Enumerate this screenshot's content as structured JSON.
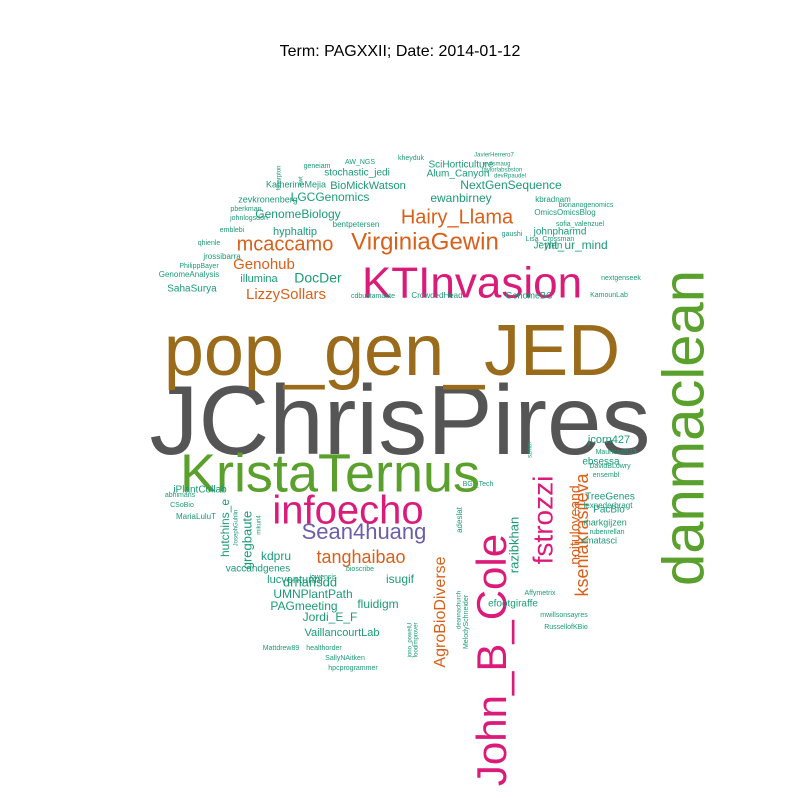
{
  "chart_data": {
    "type": "wordcloud",
    "title": "Term: PAGXXII; Date: 2014-01-12",
    "colors": {
      "gray": "#555555",
      "brown": "#9A6B1A",
      "green": "#5AA02C",
      "pink": "#DB1B7A",
      "orange": "#D9601A",
      "purple": "#6A5FA8",
      "teal": "#1C9A77"
    },
    "words": [
      {
        "text": "JChrisPires",
        "color": "gray"
      },
      {
        "text": "pop_gen_JED",
        "color": "brown"
      },
      {
        "text": "danmaclean",
        "color": "green"
      },
      {
        "text": "KristaTernus",
        "color": "green"
      },
      {
        "text": "KTInvasion",
        "color": "pink"
      },
      {
        "text": "John_B_Cole",
        "color": "pink"
      },
      {
        "text": "infoecho",
        "color": "pink"
      },
      {
        "text": "fstrozzi",
        "color": "pink"
      },
      {
        "text": "VirginiaGewin",
        "color": "orange"
      },
      {
        "text": "Hairy_Llama",
        "color": "orange"
      },
      {
        "text": "mcaccamo",
        "color": "orange"
      },
      {
        "text": "Sean4huang",
        "color": "purple"
      },
      {
        "text": "tanghaibao",
        "color": "orange"
      },
      {
        "text": "AgroBioDiverse",
        "color": "orange"
      },
      {
        "text": "kseniakrasileva",
        "color": "orange"
      },
      {
        "text": "noituloveand",
        "color": "orange"
      },
      {
        "text": "LizzySollars",
        "color": "orange"
      },
      {
        "text": "Genohub",
        "color": "orange"
      },
      {
        "text": "DocDer",
        "color": "teal"
      },
      {
        "text": "razibkhan",
        "color": "teal"
      },
      {
        "text": "drhansdd",
        "color": "teal"
      },
      {
        "text": "gregbaute",
        "color": "teal"
      },
      {
        "text": "hutchins_e",
        "color": "teal"
      },
      {
        "text": "lucventurini",
        "color": "teal"
      },
      {
        "text": "isugif",
        "color": "teal"
      },
      {
        "text": "UMNPlantPath",
        "color": "teal"
      },
      {
        "text": "PAGmeeting",
        "color": "teal"
      },
      {
        "text": "fluidigm",
        "color": "teal"
      },
      {
        "text": "Jordi_E_F",
        "color": "teal"
      },
      {
        "text": "VaillancourtLab",
        "color": "teal"
      },
      {
        "text": "kdpru",
        "color": "teal"
      },
      {
        "text": "illumina",
        "color": "teal"
      },
      {
        "text": "GenomeBiology",
        "color": "teal"
      },
      {
        "text": "LGCGenomics",
        "color": "teal"
      },
      {
        "text": "ewanbirney",
        "color": "teal"
      },
      {
        "text": "NextGenSequence",
        "color": "teal"
      },
      {
        "text": "BioMickWatson",
        "color": "teal"
      },
      {
        "text": "stochastic_jedi",
        "color": "teal"
      },
      {
        "text": "Alum_Canyon",
        "color": "teal"
      },
      {
        "text": "SciHorticulture",
        "color": "teal"
      },
      {
        "text": "hyphaltip",
        "color": "teal"
      },
      {
        "text": "zevkronenberg",
        "color": "teal"
      },
      {
        "text": "KatherineMejia",
        "color": "teal"
      },
      {
        "text": "mt_ur_mind",
        "color": "teal"
      },
      {
        "text": "johnpharmd",
        "color": "teal"
      },
      {
        "text": "Jeylen",
        "color": "teal"
      },
      {
        "text": "jcorn427",
        "color": "teal"
      },
      {
        "text": "ebsessa",
        "color": "teal"
      },
      {
        "text": "TreeGenes",
        "color": "teal"
      },
      {
        "text": "PacBio",
        "color": "teal"
      },
      {
        "text": "markgijzen",
        "color": "teal"
      },
      {
        "text": "nmatasci",
        "color": "teal"
      },
      {
        "text": "efootgiraffe",
        "color": "teal"
      },
      {
        "text": "iPlantCollab",
        "color": "teal"
      },
      {
        "text": "MariaLuluT",
        "color": "teal"
      },
      {
        "text": "vaccandgenes",
        "color": "teal"
      },
      {
        "text": "SahaSurya",
        "color": "teal"
      },
      {
        "text": "GenomeAnalysis",
        "color": "teal"
      },
      {
        "text": "OmicsOmicsBlog",
        "color": "teal"
      },
      {
        "text": "kbradnam",
        "color": "teal"
      },
      {
        "text": "GenomeBC",
        "color": "teal"
      },
      {
        "text": "CrowdedHead",
        "color": "teal"
      },
      {
        "text": "cdbustamante",
        "color": "teal"
      },
      {
        "text": "nextgenseek",
        "color": "teal"
      },
      {
        "text": "KamounLab",
        "color": "teal"
      },
      {
        "text": "Mattdrew89",
        "color": "teal"
      },
      {
        "text": "healthorder",
        "color": "teal"
      },
      {
        "text": "SallyNAitken",
        "color": "teal"
      },
      {
        "text": "hpcprogrammer",
        "color": "teal"
      },
      {
        "text": "adeslat",
        "color": "teal"
      },
      {
        "text": "BGI_Tech",
        "color": "teal"
      },
      {
        "text": "szintri",
        "color": "teal"
      },
      {
        "text": "MaurissaB23",
        "color": "teal"
      },
      {
        "text": "DavidBLowry",
        "color": "teal"
      },
      {
        "text": "ensembl",
        "color": "teal"
      },
      {
        "text": "lexnederbragt",
        "color": "teal"
      },
      {
        "text": "rubenrellan",
        "color": "teal"
      },
      {
        "text": "Affymetrix",
        "color": "teal"
      },
      {
        "text": "mwillsonsayres",
        "color": "teal"
      },
      {
        "text": "RussellofKBio",
        "color": "teal"
      },
      {
        "text": "JosephGuhlin",
        "color": "teal"
      },
      {
        "text": "mikuri4",
        "color": "teal"
      },
      {
        "text": "abhimans",
        "color": "teal"
      },
      {
        "text": "CSoBio",
        "color": "teal"
      },
      {
        "text": "iowensis",
        "color": "teal"
      },
      {
        "text": "bioscribe",
        "color": "teal"
      },
      {
        "text": "jono_powelU",
        "color": "teal"
      },
      {
        "text": "foodimprover",
        "color": "teal"
      },
      {
        "text": "deannachurch",
        "color": "teal"
      },
      {
        "text": "MelodySchneider",
        "color": "teal"
      },
      {
        "text": "jrossibarra",
        "color": "teal"
      },
      {
        "text": "PhilippBayer",
        "color": "teal"
      },
      {
        "text": "qhienle",
        "color": "teal"
      },
      {
        "text": "emblebi",
        "color": "teal"
      },
      {
        "text": "johnlogsdon",
        "color": "teal"
      },
      {
        "text": "pberkman",
        "color": "teal"
      },
      {
        "text": "bentpetersen",
        "color": "teal"
      },
      {
        "text": "gaushi",
        "color": "teal"
      },
      {
        "text": "Lisa_Crossman",
        "color": "teal"
      },
      {
        "text": "sofia_valenzuel",
        "color": "teal"
      },
      {
        "text": "bionanogenomics",
        "color": "teal"
      },
      {
        "text": "geneiam",
        "color": "teal"
      },
      {
        "text": "AW_NGS",
        "color": "teal"
      },
      {
        "text": "kheyduk",
        "color": "teal"
      },
      {
        "text": "JavierHerrero7",
        "color": "teal"
      },
      {
        "text": "evilsmaug",
        "color": "teal"
      },
      {
        "text": "taylorlabsbston",
        "color": "teal"
      },
      {
        "text": "devRpaudel",
        "color": "teal"
      },
      {
        "text": "fsharpton",
        "color": "teal"
      },
      {
        "text": "gwt",
        "color": "teal"
      }
    ]
  }
}
